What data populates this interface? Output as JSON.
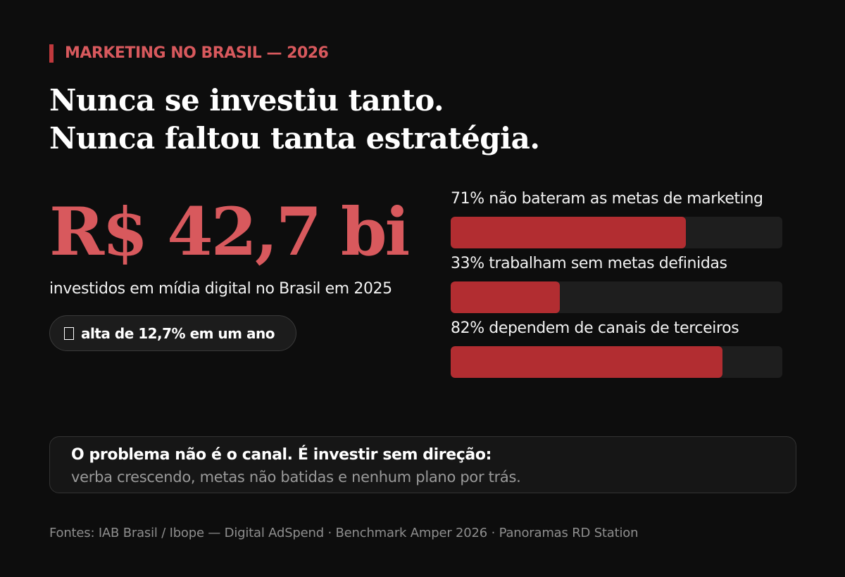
{
  "eyebrow": "MARKETING NO BRASIL — 2026",
  "headline": {
    "line1": "Nunca se investiu tanto.",
    "line2": "Nunca faltou tanta estratégia."
  },
  "highlight": {
    "value": "R$ 42,7 bi",
    "caption": "investidos em mídia digital no Brasil em 2025",
    "pill_icon": "trend-up-icon",
    "pill_text": "alta de 12,7% em um ano"
  },
  "stats": [
    {
      "label": "71% não bateram as metas de marketing",
      "percent": 71
    },
    {
      "label": "33% trabalham sem metas definidas",
      "percent": 33
    },
    {
      "label": "82% dependem de canais de terceiros",
      "percent": 82
    }
  ],
  "callout": {
    "title": "O problema não é o canal. É investir sem direção:",
    "subtitle": "verba crescendo, metas não batidas e nenhum plano por trás."
  },
  "sources": "Fontes: IAB Brasil / Ibope — Digital AdSpend · Benchmark Amper 2026 · Panoramas RD Station",
  "colors": {
    "background": "#0d0d0d",
    "accent": "#d8595d",
    "bar_fill": "#b22d31",
    "bar_track": "#1e1e1e"
  }
}
